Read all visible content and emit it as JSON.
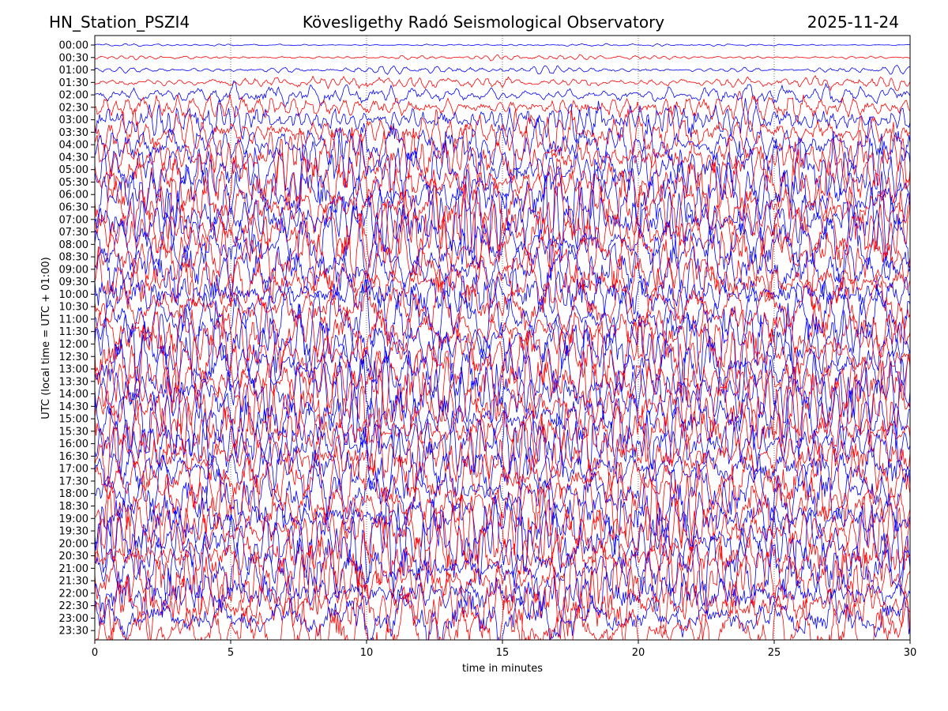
{
  "chart_data": {
    "type": "line",
    "title_left": "HN_Station_PSZI4",
    "title": "Kövesligethy Radó Seismological Observatory",
    "title_right": "2025-11-24",
    "xlabel": "time in minutes",
    "ylabel": "UTC (local time = UTC + 01:00)",
    "xlim": [
      0,
      30
    ],
    "x_ticks": [
      "0",
      "5",
      "10",
      "15",
      "20",
      "25",
      "30"
    ],
    "x_tick_values": [
      0,
      5,
      10,
      15,
      20,
      25,
      30
    ],
    "grid": "vertical dotted at x ticks",
    "series_colors": [
      "#0000ff",
      "#ff0000"
    ],
    "rows": [
      "00:00",
      "00:30",
      "01:00",
      "01:30",
      "02:00",
      "02:30",
      "03:00",
      "03:30",
      "04:00",
      "04:30",
      "05:00",
      "05:30",
      "06:00",
      "06:30",
      "07:00",
      "07:30",
      "08:00",
      "08:30",
      "09:00",
      "09:30",
      "10:00",
      "10:30",
      "11:00",
      "11:30",
      "12:00",
      "12:30",
      "13:00",
      "13:30",
      "14:00",
      "14:30",
      "15:00",
      "15:30",
      "16:00",
      "16:30",
      "17:00",
      "17:30",
      "18:00",
      "18:30",
      "19:00",
      "19:30",
      "20:00",
      "20:30",
      "21:00",
      "21:30",
      "22:00",
      "22:30",
      "23:00",
      "23:30"
    ],
    "relative_amplitude": [
      0.15,
      0.3,
      0.5,
      0.8,
      1.3,
      2.0,
      3.0,
      3.5,
      4,
      4.5,
      4.5,
      5,
      5,
      5,
      5,
      5,
      5,
      5,
      5,
      5,
      5,
      5,
      5,
      5,
      5,
      5,
      5,
      5,
      5,
      5,
      5,
      5,
      5,
      5,
      5,
      5,
      5,
      5,
      5,
      5,
      5,
      5,
      5,
      5,
      5,
      5,
      5,
      5
    ]
  }
}
